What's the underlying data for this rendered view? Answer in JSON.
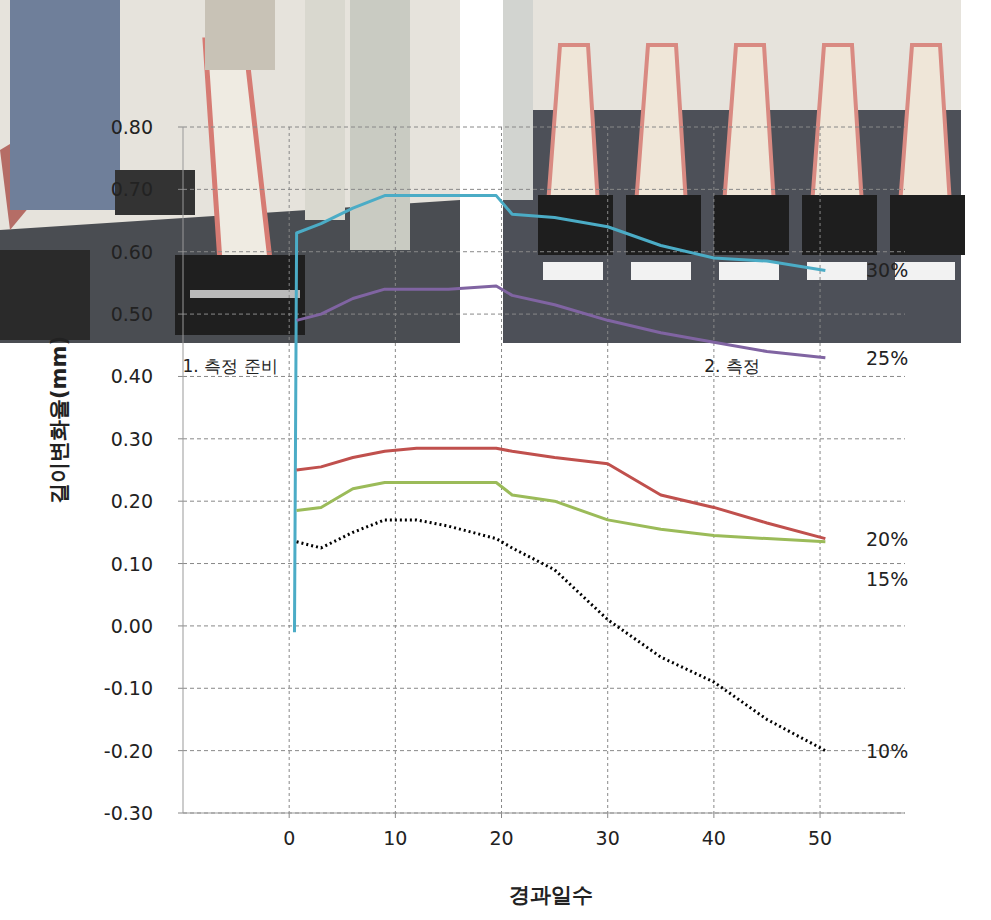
{
  "photos": [
    {
      "caption": "1. 측정 준비"
    },
    {
      "caption": "2. 측정"
    }
  ],
  "chart_data": {
    "type": "line",
    "x_label": "경과일수",
    "y_label": "길이변화율(mm)",
    "x": [
      0.5,
      0.7,
      3,
      6,
      9,
      12,
      15,
      19.5,
      21,
      25,
      30,
      35,
      40,
      45,
      50.5
    ],
    "series": [
      {
        "name": "30%",
        "color": "#4bacc6",
        "line_style": "solid",
        "values": [
          -0.01,
          0.63,
          0.645,
          0.67,
          0.69,
          0.69,
          0.69,
          0.69,
          0.66,
          0.655,
          0.64,
          0.61,
          0.59,
          0.585,
          0.57
        ]
      },
      {
        "name": "25%",
        "color": "#8064a2",
        "line_style": "solid",
        "values": [
          null,
          0.49,
          0.5,
          0.525,
          0.54,
          0.54,
          0.54,
          0.545,
          0.53,
          0.515,
          0.49,
          0.47,
          0.455,
          0.44,
          0.43
        ]
      },
      {
        "name": "20%",
        "color": "#c0504d",
        "line_style": "solid",
        "values": [
          null,
          0.25,
          0.255,
          0.27,
          0.28,
          0.285,
          0.285,
          0.285,
          0.28,
          0.27,
          0.26,
          0.21,
          0.19,
          0.165,
          0.14
        ]
      },
      {
        "name": "15%",
        "color": "#9bbb59",
        "line_style": "solid",
        "values": [
          null,
          0.185,
          0.19,
          0.22,
          0.23,
          0.23,
          0.23,
          0.23,
          0.21,
          0.2,
          0.17,
          0.155,
          0.145,
          0.14,
          0.135
        ]
      },
      {
        "name": "10%",
        "color": "#000000",
        "line_style": "dotted",
        "values": [
          null,
          0.135,
          0.125,
          0.15,
          0.17,
          0.17,
          0.16,
          0.14,
          0.125,
          0.09,
          0.01,
          -0.05,
          -0.09,
          -0.15,
          -0.2
        ]
      }
    ],
    "xlim": [
      -10,
      58
    ],
    "xticks": [
      0,
      10,
      20,
      30,
      40,
      50
    ],
    "ylim": [
      -0.3,
      0.8
    ],
    "yticks": [
      {
        "value": -0.3,
        "label": "-0.30"
      },
      {
        "value": -0.2,
        "label": "-0.20"
      },
      {
        "value": -0.1,
        "label": "-0.10"
      },
      {
        "value": 0,
        "label": "0.00"
      },
      {
        "value": 0.1,
        "label": "0.10"
      },
      {
        "value": 0.2,
        "label": "0.20"
      },
      {
        "value": 0.3,
        "label": "0.30"
      },
      {
        "value": 0.4,
        "label": "0.40"
      },
      {
        "value": 0.5,
        "label": "0.50"
      },
      {
        "value": 0.6,
        "label": "0.60"
      },
      {
        "value": 0.7,
        "label": "0.70"
      },
      {
        "value": 0.8,
        "label": "0.80"
      }
    ],
    "grid": true
  }
}
